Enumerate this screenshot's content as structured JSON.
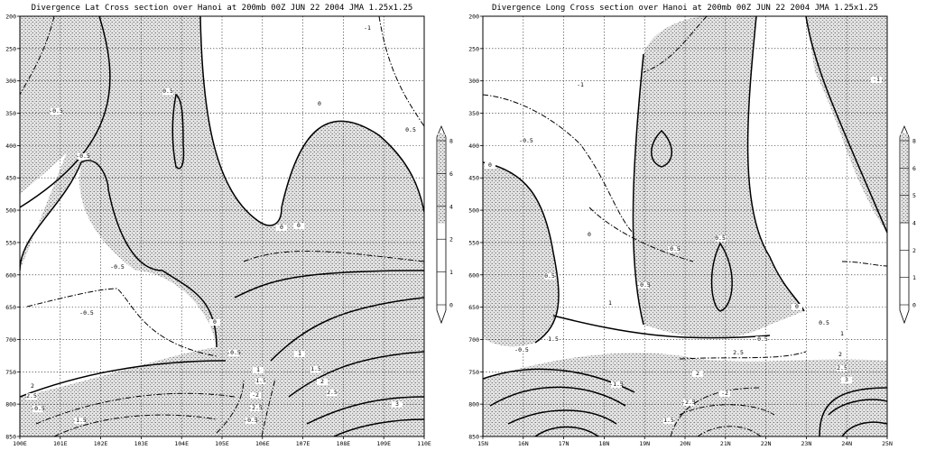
{
  "chart_data": [
    {
      "type": "contour",
      "title": "Divergence Lat Cross section over Hanoi  at 200mb 00Z JUN 22 2004 JMA 1.25x1.25",
      "x_ticks": [
        "100E",
        "101E",
        "102E",
        "103E",
        "104E",
        "105E",
        "106E",
        "107E",
        "108E",
        "109E",
        "110E"
      ],
      "y_ticks": [
        "200",
        "250",
        "300",
        "350",
        "400",
        "450",
        "500",
        "550",
        "600",
        "650",
        "700",
        "750",
        "800",
        "850"
      ],
      "ylim": [
        200,
        850
      ],
      "y_inverted": true,
      "shaded": "positive divergence (> 0)",
      "contour_labels": [
        "-1",
        "-0.5",
        "0.5",
        "-0.5",
        "0",
        "-0.5",
        "0",
        "0.5",
        "0",
        "-0.5",
        "0",
        "-0.5",
        "1",
        "1.5",
        "2",
        "2.5",
        "-0.5",
        "-1.5",
        "-2",
        "-2.5",
        "-0.5",
        "1",
        "1.5",
        "2",
        "2.5",
        "3"
      ],
      "colorbar": {
        "ticks": [
          "0",
          "1",
          "2",
          "4",
          "6",
          "8"
        ]
      },
      "grid": true
    },
    {
      "type": "contour",
      "title": "Divergence Long Cross section over Hanoi  at 200mb 00Z JUN 22 2004 JMA 1.25x1.25",
      "x_ticks": [
        "15N",
        "16N",
        "17N",
        "18N",
        "19N",
        "20N",
        "21N",
        "22N",
        "23N",
        "24N",
        "25N"
      ],
      "y_ticks": [
        "200",
        "250",
        "300",
        "350",
        "400",
        "450",
        "500",
        "550",
        "600",
        "650",
        "700",
        "750",
        "800",
        "850"
      ],
      "ylim": [
        200,
        850
      ],
      "y_inverted": true,
      "shaded": "positive divergence (> 0)",
      "contour_labels": [
        "-1",
        "-0.5",
        "0",
        "-1",
        "0",
        "0.5",
        "-0.5",
        "0.5",
        "-0.5",
        "1",
        "0",
        "0.5",
        "1",
        "1.5",
        "-0.5",
        "-0.5",
        "2",
        "2.5",
        "-1.5",
        "-2",
        "-2.5",
        "1.5",
        "2",
        "2.5",
        "3"
      ],
      "colorbar": {
        "ticks": [
          "0",
          "1",
          "2",
          "4",
          "5",
          "6",
          "8"
        ]
      },
      "grid": true
    }
  ]
}
